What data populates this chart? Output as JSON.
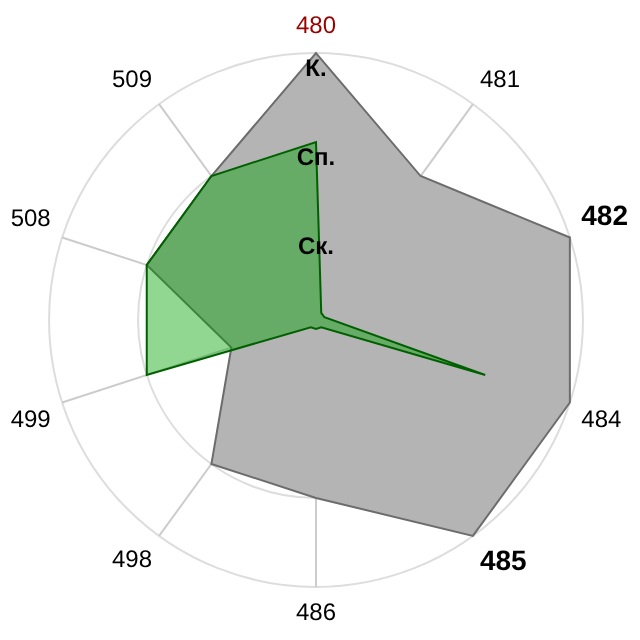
{
  "chart_data": {
    "type": "radar",
    "categories": [
      "480",
      "481",
      "482",
      "484",
      "485",
      "486",
      "498",
      "499",
      "508",
      "509"
    ],
    "series": [
      {
        "color": "#b4b4b4",
        "values": [
          3,
          2,
          3,
          3,
          3,
          2,
          2,
          1,
          2,
          2
        ]
      },
      {
        "color": "#00a000",
        "values": [
          2,
          0.1,
          0.1,
          2,
          0.1,
          0.1,
          0.1,
          2,
          2,
          2
        ]
      }
    ],
    "ylim": [
      0,
      3
    ],
    "yticks": [
      {
        "value": 1,
        "label": "Ск."
      },
      {
        "value": 2,
        "label": "Сп."
      },
      {
        "value": 3,
        "label": "К."
      }
    ],
    "grid": true,
    "legend": false
  }
}
